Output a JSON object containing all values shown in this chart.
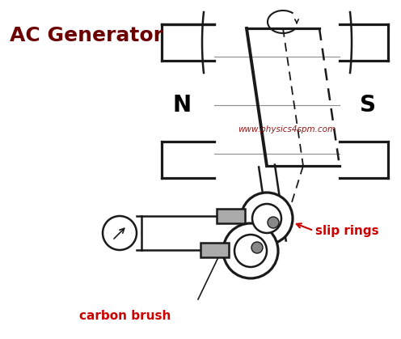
{
  "title": "AC Generator",
  "title_color": "#6B0000",
  "title_fontsize": 18,
  "watermark": "www.physics4spm.com",
  "watermark_color": "#8B0000",
  "label_slip_rings": "slip rings",
  "label_carbon_brush": "carbon brush",
  "label_N": "N",
  "label_S": "S",
  "label_color_NS": "#000000",
  "label_color_red": "#CC0000",
  "bg_color": "#FFFFFF",
  "line_color": "#1a1a1a"
}
